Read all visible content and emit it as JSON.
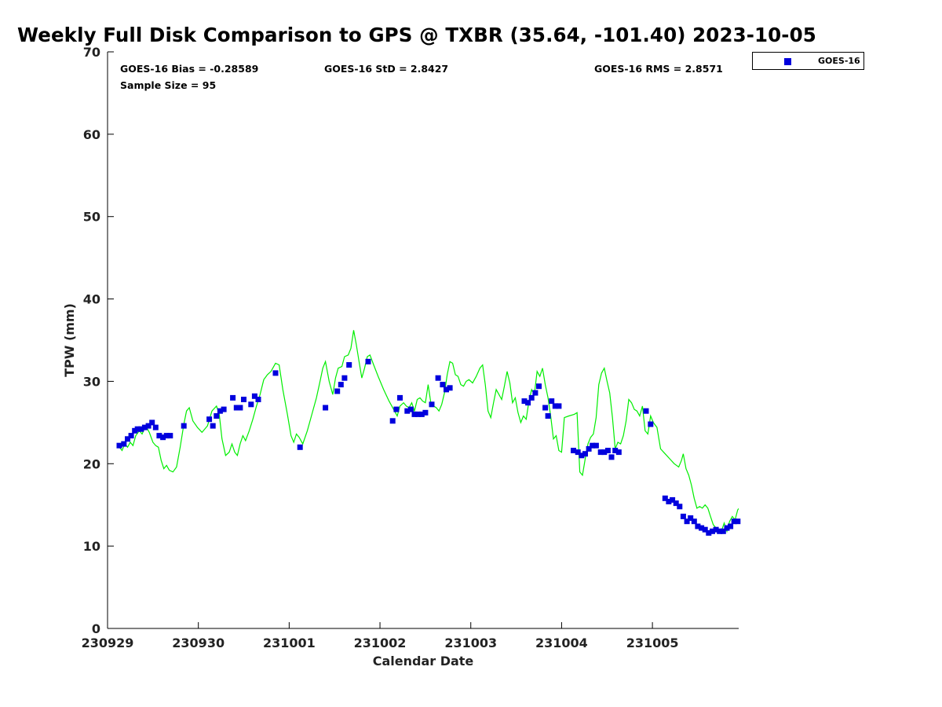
{
  "title": "Weekly Full Disk Comparison to GPS @ TXBR (35.64, -101.40) 2023-10-05",
  "stats": {
    "bias": "GOES-16 Bias = -0.28589",
    "sample_size": "Sample Size = 95",
    "std": "GOES-16 StD = 2.8427",
    "rms": "GOES-16 RMS = 2.8571"
  },
  "legend": {
    "label": "GOES-16",
    "marker_color": "#0000dd"
  },
  "colors": {
    "gps_line": "#00ee00",
    "goes_marker": "#0000dd",
    "axis": "#000000"
  },
  "chart_data": {
    "type": "scatter",
    "title": "Weekly Full Disk Comparison to GPS @ TXBR (35.64, -101.40) 2023-10-05",
    "xlabel": "Calendar Date",
    "ylabel": "TPW (mm)",
    "xlim": [
      0,
      6.95
    ],
    "ylim": [
      0,
      70
    ],
    "x_units": "days since 230929 00Z",
    "x_ticks": [
      0,
      1,
      2,
      3,
      4,
      5,
      6
    ],
    "x_tick_labels": [
      "230929",
      "230930",
      "231001",
      "231002",
      "231003",
      "231004",
      "231005"
    ],
    "y_ticks": [
      0,
      10,
      20,
      30,
      40,
      50,
      60,
      70
    ],
    "y_tick_labels": [
      "0",
      "10",
      "20",
      "30",
      "40",
      "50",
      "60",
      "70"
    ],
    "grid": false,
    "legend_position": "outside-top-right",
    "series": [
      {
        "name": "",
        "kind": "line",
        "points": [
          [
            0.13,
            22.0
          ],
          [
            0.16,
            21.6
          ],
          [
            0.19,
            22.4
          ],
          [
            0.22,
            22.0
          ],
          [
            0.25,
            22.6
          ],
          [
            0.28,
            22.2
          ],
          [
            0.31,
            23.4
          ],
          [
            0.35,
            24.0
          ],
          [
            0.38,
            23.6
          ],
          [
            0.42,
            24.6
          ],
          [
            0.46,
            23.8
          ],
          [
            0.5,
            22.6
          ],
          [
            0.53,
            22.2
          ],
          [
            0.56,
            22.0
          ],
          [
            0.59,
            20.4
          ],
          [
            0.62,
            19.4
          ],
          [
            0.65,
            19.8
          ],
          [
            0.68,
            19.2
          ],
          [
            0.72,
            19.0
          ],
          [
            0.76,
            19.6
          ],
          [
            0.8,
            22.0
          ],
          [
            0.84,
            24.8
          ],
          [
            0.87,
            26.4
          ],
          [
            0.9,
            26.8
          ],
          [
            0.94,
            25.2
          ],
          [
            0.99,
            24.4
          ],
          [
            1.04,
            23.8
          ],
          [
            1.1,
            24.6
          ],
          [
            1.15,
            26.4
          ],
          [
            1.2,
            27.0
          ],
          [
            1.23,
            26.0
          ],
          [
            1.26,
            23.0
          ],
          [
            1.3,
            21.0
          ],
          [
            1.34,
            21.4
          ],
          [
            1.37,
            22.4
          ],
          [
            1.4,
            21.4
          ],
          [
            1.43,
            21.0
          ],
          [
            1.46,
            22.4
          ],
          [
            1.49,
            23.4
          ],
          [
            1.52,
            22.8
          ],
          [
            1.56,
            24.0
          ],
          [
            1.6,
            25.4
          ],
          [
            1.64,
            27.0
          ],
          [
            1.68,
            28.4
          ],
          [
            1.72,
            30.2
          ],
          [
            1.76,
            30.8
          ],
          [
            1.8,
            31.2
          ],
          [
            1.85,
            32.2
          ],
          [
            1.89,
            32.0
          ],
          [
            1.93,
            29.0
          ],
          [
            1.98,
            26.0
          ],
          [
            2.02,
            23.4
          ],
          [
            2.05,
            22.6
          ],
          [
            2.08,
            23.6
          ],
          [
            2.11,
            23.2
          ],
          [
            2.15,
            22.4
          ],
          [
            2.2,
            24.0
          ],
          [
            2.25,
            26.0
          ],
          [
            2.3,
            28.0
          ],
          [
            2.34,
            30.0
          ],
          [
            2.37,
            31.6
          ],
          [
            2.4,
            32.4
          ],
          [
            2.44,
            30.0
          ],
          [
            2.48,
            28.4
          ],
          [
            2.51,
            30.4
          ],
          [
            2.54,
            31.6
          ],
          [
            2.58,
            31.8
          ],
          [
            2.61,
            33.0
          ],
          [
            2.65,
            33.2
          ],
          [
            2.68,
            34.0
          ],
          [
            2.71,
            36.2
          ],
          [
            2.74,
            34.4
          ],
          [
            2.77,
            32.4
          ],
          [
            2.8,
            30.4
          ],
          [
            2.83,
            31.6
          ],
          [
            2.86,
            33.0
          ],
          [
            2.89,
            33.2
          ],
          [
            2.93,
            32.0
          ],
          [
            2.98,
            30.6
          ],
          [
            3.04,
            29.0
          ],
          [
            3.1,
            27.6
          ],
          [
            3.16,
            26.4
          ],
          [
            3.19,
            25.8
          ],
          [
            3.22,
            27.0
          ],
          [
            3.26,
            27.4
          ],
          [
            3.29,
            27.0
          ],
          [
            3.32,
            26.8
          ],
          [
            3.35,
            27.4
          ],
          [
            3.38,
            26.4
          ],
          [
            3.41,
            27.8
          ],
          [
            3.44,
            28.0
          ],
          [
            3.47,
            27.6
          ],
          [
            3.5,
            27.4
          ],
          [
            3.53,
            29.6
          ],
          [
            3.56,
            27.4
          ],
          [
            3.59,
            27.0
          ],
          [
            3.62,
            26.8
          ],
          [
            3.65,
            26.4
          ],
          [
            3.68,
            27.2
          ],
          [
            3.71,
            28.6
          ],
          [
            3.74,
            30.8
          ],
          [
            3.77,
            32.4
          ],
          [
            3.8,
            32.2
          ],
          [
            3.83,
            30.8
          ],
          [
            3.86,
            30.6
          ],
          [
            3.89,
            29.6
          ],
          [
            3.92,
            29.4
          ],
          [
            3.95,
            30.0
          ],
          [
            3.98,
            30.2
          ],
          [
            4.02,
            29.8
          ],
          [
            4.06,
            30.6
          ],
          [
            4.1,
            31.6
          ],
          [
            4.13,
            32.0
          ],
          [
            4.16,
            29.6
          ],
          [
            4.19,
            26.4
          ],
          [
            4.22,
            25.6
          ],
          [
            4.25,
            27.4
          ],
          [
            4.28,
            29.0
          ],
          [
            4.31,
            28.4
          ],
          [
            4.34,
            27.8
          ],
          [
            4.37,
            29.4
          ],
          [
            4.4,
            31.2
          ],
          [
            4.43,
            29.8
          ],
          [
            4.46,
            27.4
          ],
          [
            4.49,
            28.0
          ],
          [
            4.52,
            26.2
          ],
          [
            4.55,
            25.0
          ],
          [
            4.58,
            25.8
          ],
          [
            4.61,
            25.4
          ],
          [
            4.64,
            27.6
          ],
          [
            4.67,
            29.0
          ],
          [
            4.7,
            28.4
          ],
          [
            4.73,
            31.2
          ],
          [
            4.76,
            30.6
          ],
          [
            4.79,
            31.6
          ],
          [
            4.82,
            29.6
          ],
          [
            4.85,
            28.0
          ],
          [
            4.88,
            25.8
          ],
          [
            4.91,
            23.0
          ],
          [
            4.94,
            23.4
          ],
          [
            4.97,
            21.6
          ],
          [
            5.0,
            21.4
          ],
          [
            5.03,
            25.6
          ],
          [
            5.08,
            25.8
          ],
          [
            5.14,
            26.0
          ],
          [
            5.17,
            26.2
          ],
          [
            5.2,
            19.0
          ],
          [
            5.23,
            18.6
          ],
          [
            5.26,
            20.6
          ],
          [
            5.29,
            22.4
          ],
          [
            5.32,
            23.2
          ],
          [
            5.35,
            23.6
          ],
          [
            5.38,
            25.6
          ],
          [
            5.41,
            29.6
          ],
          [
            5.44,
            31.0
          ],
          [
            5.47,
            31.6
          ],
          [
            5.5,
            30.0
          ],
          [
            5.53,
            28.6
          ],
          [
            5.56,
            25.6
          ],
          [
            5.59,
            21.8
          ],
          [
            5.62,
            22.6
          ],
          [
            5.65,
            22.4
          ],
          [
            5.68,
            23.4
          ],
          [
            5.71,
            25.2
          ],
          [
            5.74,
            27.8
          ],
          [
            5.77,
            27.4
          ],
          [
            5.8,
            26.6
          ],
          [
            5.83,
            26.4
          ],
          [
            5.86,
            25.8
          ],
          [
            5.89,
            27.0
          ],
          [
            5.92,
            24.0
          ],
          [
            5.95,
            23.6
          ],
          [
            5.98,
            25.8
          ],
          [
            6.01,
            25.0
          ],
          [
            6.05,
            24.4
          ],
          [
            6.09,
            21.8
          ],
          [
            6.14,
            21.2
          ],
          [
            6.19,
            20.6
          ],
          [
            6.24,
            20.0
          ],
          [
            6.29,
            19.6
          ],
          [
            6.32,
            20.4
          ],
          [
            6.34,
            21.2
          ],
          [
            6.37,
            19.4
          ],
          [
            6.4,
            18.6
          ],
          [
            6.43,
            17.4
          ],
          [
            6.46,
            15.8
          ],
          [
            6.49,
            14.6
          ],
          [
            6.52,
            14.8
          ],
          [
            6.55,
            14.6
          ],
          [
            6.58,
            15.0
          ],
          [
            6.61,
            14.6
          ],
          [
            6.64,
            13.6
          ],
          [
            6.67,
            12.6
          ],
          [
            6.7,
            12.2
          ],
          [
            6.73,
            11.6
          ],
          [
            6.76,
            11.8
          ],
          [
            6.79,
            12.8
          ],
          [
            6.82,
            11.8
          ],
          [
            6.85,
            13.0
          ],
          [
            6.88,
            13.6
          ],
          [
            6.91,
            13.2
          ],
          [
            6.94,
            14.4
          ],
          [
            6.97,
            14.8
          ],
          [
            7.0,
            13.6
          ],
          [
            7.03,
            13.4
          ],
          [
            7.06,
            14.8
          ]
        ]
      },
      {
        "name": "GOES-16",
        "kind": "scatter",
        "points": [
          [
            0.13,
            22.2
          ],
          [
            0.18,
            22.4
          ],
          [
            0.22,
            23.0
          ],
          [
            0.26,
            23.4
          ],
          [
            0.3,
            24.0
          ],
          [
            0.33,
            24.2
          ],
          [
            0.37,
            24.2
          ],
          [
            0.41,
            24.4
          ],
          [
            0.45,
            24.6
          ],
          [
            0.49,
            25.0
          ],
          [
            0.53,
            24.4
          ],
          [
            0.57,
            23.4
          ],
          [
            0.61,
            23.2
          ],
          [
            0.65,
            23.4
          ],
          [
            0.69,
            23.4
          ],
          [
            0.84,
            24.6
          ],
          [
            1.12,
            25.4
          ],
          [
            1.16,
            24.6
          ],
          [
            1.2,
            25.8
          ],
          [
            1.24,
            26.4
          ],
          [
            1.28,
            26.6
          ],
          [
            1.38,
            28.0
          ],
          [
            1.42,
            26.8
          ],
          [
            1.46,
            26.8
          ],
          [
            1.5,
            27.8
          ],
          [
            1.58,
            27.2
          ],
          [
            1.62,
            28.2
          ],
          [
            1.66,
            27.8
          ],
          [
            1.85,
            31.0
          ],
          [
            2.12,
            22.0
          ],
          [
            2.4,
            26.8
          ],
          [
            2.53,
            28.8
          ],
          [
            2.57,
            29.6
          ],
          [
            2.61,
            30.4
          ],
          [
            2.66,
            32.0
          ],
          [
            2.87,
            32.4
          ],
          [
            3.14,
            25.2
          ],
          [
            3.18,
            26.6
          ],
          [
            3.22,
            28.0
          ],
          [
            3.3,
            26.4
          ],
          [
            3.34,
            26.6
          ],
          [
            3.38,
            26.0
          ],
          [
            3.42,
            26.0
          ],
          [
            3.46,
            26.0
          ],
          [
            3.5,
            26.2
          ],
          [
            3.57,
            27.2
          ],
          [
            3.64,
            30.4
          ],
          [
            3.69,
            29.6
          ],
          [
            3.73,
            29.0
          ],
          [
            3.77,
            29.2
          ],
          [
            4.59,
            27.6
          ],
          [
            4.63,
            27.4
          ],
          [
            4.67,
            28.0
          ],
          [
            4.71,
            28.6
          ],
          [
            4.75,
            29.4
          ],
          [
            4.82,
            26.8
          ],
          [
            4.85,
            25.8
          ],
          [
            4.89,
            27.6
          ],
          [
            4.93,
            27.0
          ],
          [
            4.97,
            27.0
          ],
          [
            5.13,
            21.6
          ],
          [
            5.18,
            21.4
          ],
          [
            5.22,
            21.0
          ],
          [
            5.26,
            21.2
          ],
          [
            5.3,
            21.8
          ],
          [
            5.34,
            22.2
          ],
          [
            5.38,
            22.2
          ],
          [
            5.43,
            21.4
          ],
          [
            5.47,
            21.4
          ],
          [
            5.51,
            21.6
          ],
          [
            5.55,
            20.8
          ],
          [
            5.59,
            21.6
          ],
          [
            5.63,
            21.4
          ],
          [
            5.93,
            26.4
          ],
          [
            5.98,
            24.8
          ],
          [
            6.14,
            15.8
          ],
          [
            6.18,
            15.4
          ],
          [
            6.22,
            15.6
          ],
          [
            6.26,
            15.2
          ],
          [
            6.3,
            14.8
          ],
          [
            6.34,
            13.6
          ],
          [
            6.38,
            13.0
          ],
          [
            6.42,
            13.4
          ],
          [
            6.46,
            13.0
          ],
          [
            6.5,
            12.4
          ],
          [
            6.54,
            12.2
          ],
          [
            6.58,
            12.0
          ],
          [
            6.62,
            11.6
          ],
          [
            6.66,
            11.8
          ],
          [
            6.7,
            12.0
          ],
          [
            6.74,
            11.8
          ],
          [
            6.78,
            11.8
          ],
          [
            6.82,
            12.2
          ],
          [
            6.86,
            12.4
          ],
          [
            6.9,
            13.0
          ],
          [
            6.94,
            13.0
          ]
        ]
      }
    ]
  }
}
